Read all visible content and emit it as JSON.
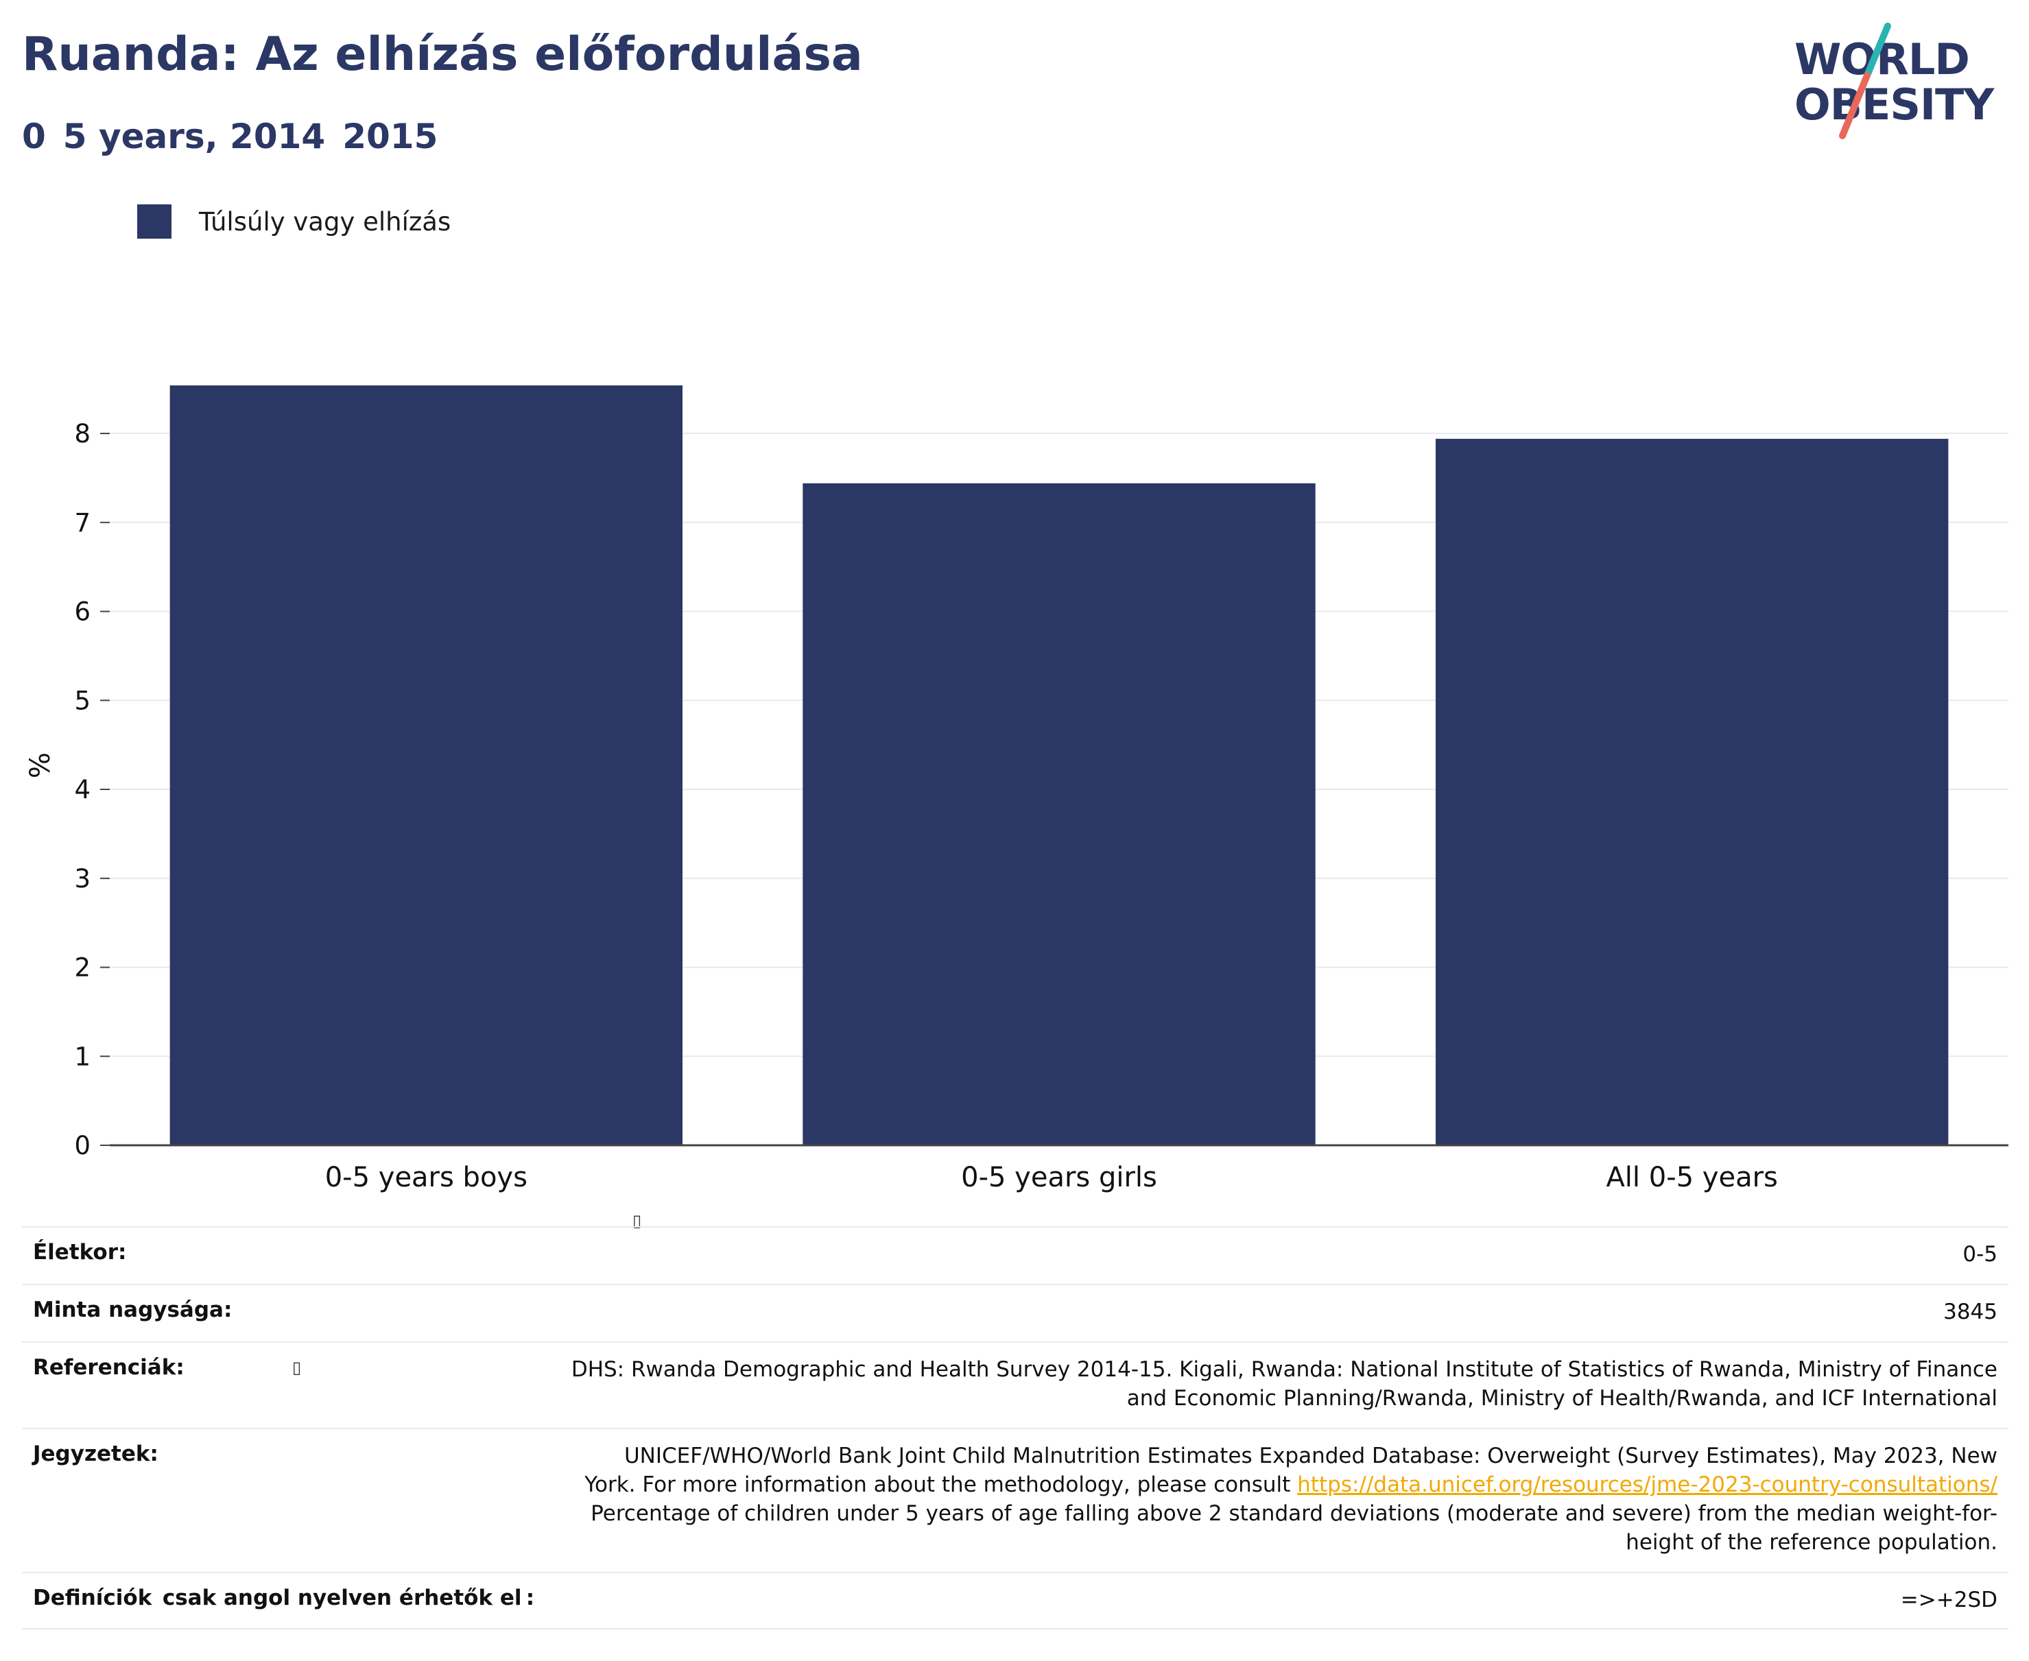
{
  "header": {
    "title": "Ruanda: Az elhízás előfordulása",
    "subtitle": "0 5 years, 2014 2015"
  },
  "logo": {
    "line1": "WORLD",
    "line2": "OBESITY",
    "colors": {
      "text": "#2b3764",
      "slash_top": "#2bb3b1",
      "slash_bottom": "#e8685a"
    }
  },
  "legend": {
    "label": "Túlsúly vagy elhízás",
    "color": "#2b3764"
  },
  "chart_data": {
    "type": "bar",
    "categories": [
      "0-5 years boys",
      "0-5 years girls",
      "All 0-5 years"
    ],
    "series": [
      {
        "name": "Túlsúly vagy elhízás",
        "values": [
          8.54,
          7.44,
          7.94
        ]
      }
    ],
    "xlabel": "",
    "ylabel": "%",
    "ylim": [
      0,
      8.54
    ],
    "yticks": [
      0,
      1,
      2,
      3,
      4,
      5,
      6,
      7,
      8
    ],
    "grid": true,
    "legend_position": "top-left",
    "color": "#2b3764"
  },
  "info": {
    "age": {
      "label": "Életkor:",
      "value": "0-5"
    },
    "sample": {
      "label": "Minta nagysága:",
      "value": "3845"
    },
    "references": {
      "label": "Referenciák:",
      "line1": "DHS: Rwanda Demographic and Health Survey 2014-15. Kigali, Rwanda: National Institute of Statistics of Rwanda, Ministry of Finance",
      "line2": "and Economic Planning/Rwanda, Ministry of Health/Rwanda, and ICF International"
    },
    "notes": {
      "label": "Jegyzetek:",
      "line1": "UNICEF/WHO/World Bank Joint Child Malnutrition Estimates Expanded Database: Overweight (Survey Estimates), May 2023, New",
      "line2_prefix": "York. For more information about the methodology, please consult ",
      "link": "https://data.unicef.org/resources/jme-2023-country-consultations/",
      "line3": "Percentage of children under 5 years of age falling above 2 standard deviations (moderate and severe) from the median weight-for-",
      "line4": "height of the reference population."
    },
    "definitions": {
      "label": "Definíciók csak angol nyelven érhetők el :",
      "value": "=>+2SD"
    }
  }
}
